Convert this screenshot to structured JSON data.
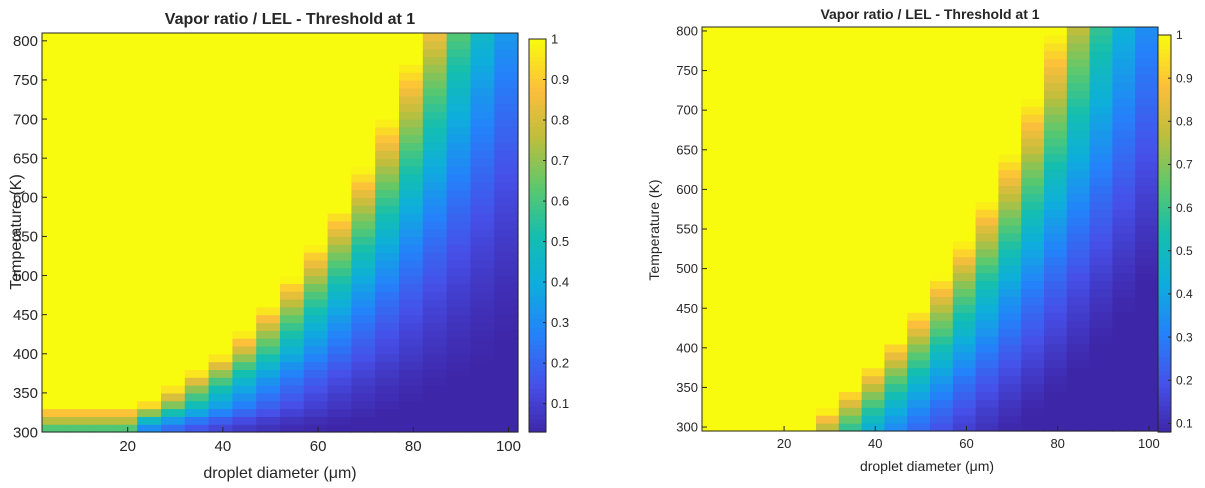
{
  "chart_data": [
    {
      "type": "heatmap",
      "title": "Vapor ratio / LEL - Threshold at 1",
      "xlabel": "droplet diameter (μm)",
      "ylabel": "Temperature (K)",
      "xlim": [
        2,
        102
      ],
      "ylim": [
        300,
        810
      ],
      "x_ticks": [
        20,
        40,
        60,
        80,
        100
      ],
      "y_ticks": [
        300,
        350,
        400,
        450,
        500,
        550,
        600,
        650,
        700,
        750,
        800
      ],
      "colorbar_ticks": [
        0.1,
        0.2,
        0.3,
        0.4,
        0.5,
        0.6,
        0.7,
        0.8,
        0.9,
        1
      ],
      "clim": [
        0.03,
        1
      ],
      "colormap": "parula",
      "cell_x_range": [
        2,
        102
      ],
      "cell_count_x": 20,
      "cell_y_range": [
        300,
        810
      ],
      "cell_count_y": 51,
      "model": "value = min(1, exp(-(d - threshold_diameter(T)) * 0.062)); threshold_diameter(T) rises from ~22 um at 330 K to ~82 um at 810 K",
      "threshold_diameter": {
        "T": [
          300,
          330,
          360,
          400,
          450,
          500,
          560,
          620,
          680,
          750,
          810
        ],
        "d": [
          2,
          22,
          30,
          40,
          48,
          55,
          62,
          68,
          73,
          78,
          82
        ]
      },
      "bottom_rows_note": "rows 300-330 K at small diameters fade from 0.6 to 0.9"
    },
    {
      "type": "heatmap",
      "title": "Vapor ratio / LEL - Threshold at 1",
      "xlabel": "droplet diameter (μm)",
      "ylabel": "Temperature (K)",
      "xlim": [
        2,
        102
      ],
      "ylim": [
        295,
        805
      ],
      "x_ticks": [
        20,
        40,
        60,
        80,
        100
      ],
      "y_ticks": [
        300,
        350,
        400,
        450,
        500,
        550,
        600,
        650,
        700,
        750,
        800
      ],
      "colorbar_ticks": [
        0.1,
        0.2,
        0.3,
        0.4,
        0.5,
        0.6,
        0.7,
        0.8,
        0.9,
        1
      ],
      "clim": [
        0.08,
        1
      ],
      "colormap": "parula",
      "cell_x_range": [
        2,
        102
      ],
      "cell_count_x": 20,
      "cell_y_range": [
        295,
        805
      ],
      "cell_count_y": 51,
      "model": "value = min(1, exp(-(d - threshold_diameter(T)) * 0.055))",
      "threshold_diameter": {
        "T": [
          295,
          310,
          340,
          380,
          420,
          470,
          520,
          580,
          650,
          720,
          805
        ],
        "d": [
          24,
          27,
          33,
          40,
          46,
          52,
          58,
          64,
          70,
          75,
          80
        ]
      }
    }
  ]
}
